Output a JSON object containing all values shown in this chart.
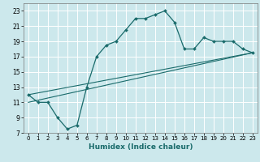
{
  "title": "",
  "xlabel": "Humidex (Indice chaleur)",
  "ylabel": "",
  "background_color": "#cce8ec",
  "grid_color": "#ffffff",
  "line_color": "#1a6b6b",
  "xlim": [
    -0.5,
    23.5
  ],
  "ylim": [
    7,
    24
  ],
  "xticks": [
    0,
    1,
    2,
    3,
    4,
    5,
    6,
    7,
    8,
    9,
    10,
    11,
    12,
    13,
    14,
    15,
    16,
    17,
    18,
    19,
    20,
    21,
    22,
    23
  ],
  "yticks": [
    7,
    9,
    11,
    13,
    15,
    17,
    19,
    21,
    23
  ],
  "series1_x": [
    0,
    1,
    2,
    3,
    4,
    5,
    6,
    7,
    8,
    9,
    10,
    11,
    12,
    13,
    14,
    15,
    16,
    17,
    18,
    19,
    20,
    21,
    22,
    23
  ],
  "series1_y": [
    12,
    11,
    11,
    9,
    7.5,
    8,
    13,
    17,
    18.5,
    19,
    20.5,
    22,
    22,
    22.5,
    23,
    21.5,
    18,
    18,
    19.5,
    19,
    19,
    19,
    18,
    17.5
  ],
  "series2_x": [
    0,
    23
  ],
  "series2_y": [
    11,
    17.5
  ],
  "series3_x": [
    0,
    23
  ],
  "series3_y": [
    12,
    17.5
  ]
}
